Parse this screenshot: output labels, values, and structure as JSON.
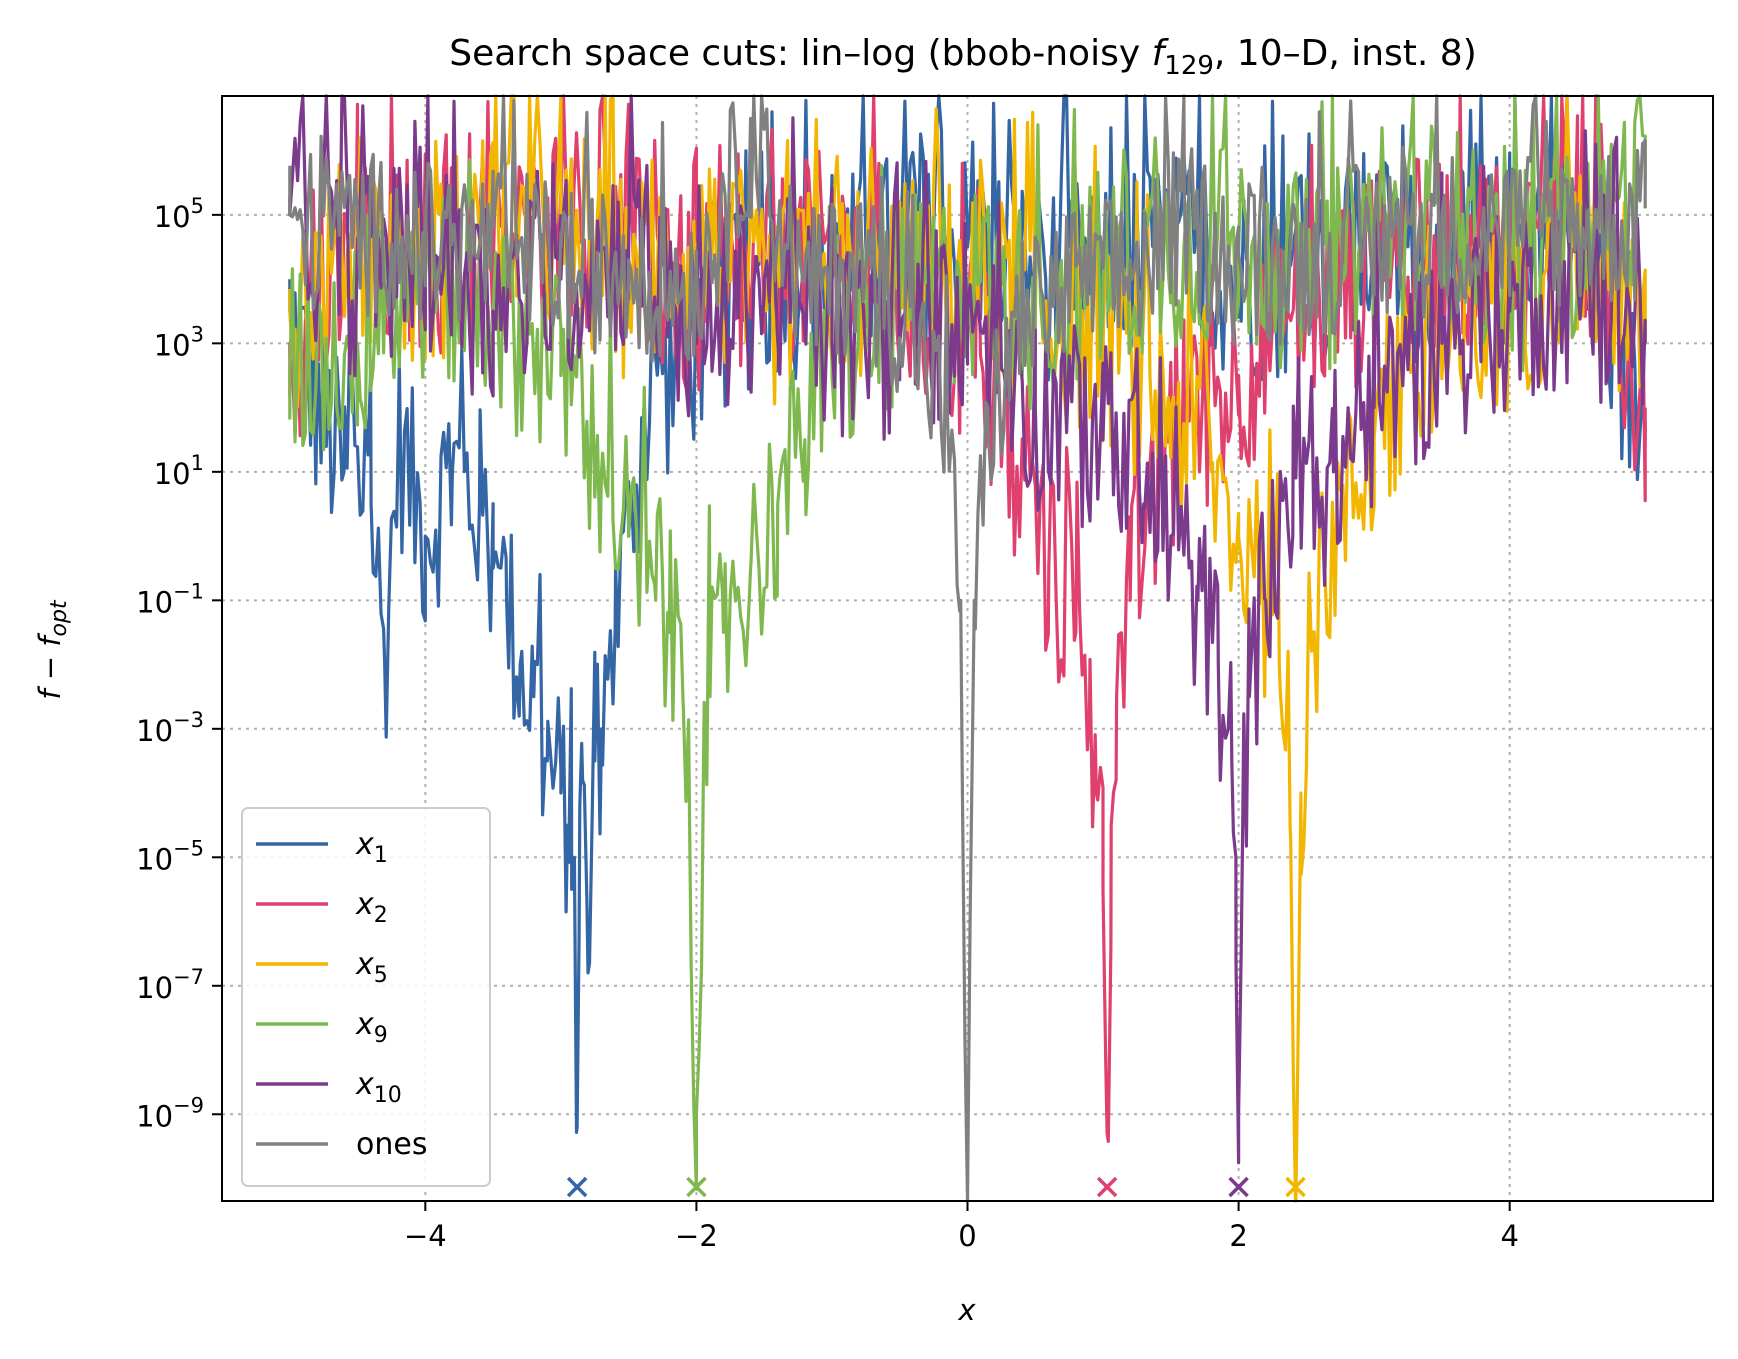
{
  "chart_data": {
    "type": "line",
    "title": {
      "prefix": "Search space cuts: lin–log (bbob-noisy ",
      "f": "f",
      "sub": "129",
      "suffix": ", 10–D, inst. 8)"
    },
    "xlabel": "x",
    "ylabel": {
      "base": "f − f",
      "sub": "opt"
    },
    "xlim": [
      -5.5,
      5.5
    ],
    "ylog_lim": [
      -10.35,
      1.0
    ],
    "yscale": "log",
    "ylog_range": [
      -10.35,
      6.85
    ],
    "grid": true,
    "legend_position": "lower-left",
    "x_ticks": [
      {
        "value": -4,
        "label": "−4"
      },
      {
        "value": -2,
        "label": "−2"
      },
      {
        "value": 0,
        "label": "0"
      },
      {
        "value": 2,
        "label": "2"
      },
      {
        "value": 4,
        "label": "4"
      }
    ],
    "y_ticks": [
      {
        "exp": 5,
        "label": "5"
      },
      {
        "exp": 3,
        "label": "3"
      },
      {
        "exp": 1,
        "label": "1"
      },
      {
        "exp": -1,
        "label": "−1"
      },
      {
        "exp": -3,
        "label": "−3"
      },
      {
        "exp": -5,
        "label": "−5"
      },
      {
        "exp": -7,
        "label": "−7"
      },
      {
        "exp": -9,
        "label": "−9"
      }
    ],
    "y_tick_base": "10",
    "series": [
      {
        "name": "x",
        "sub": "1",
        "color": "#3465a4",
        "optimum_x": -2.88,
        "x": [
          -5.0,
          -4.8,
          -4.6,
          -4.4,
          -4.3,
          -4.2,
          -4.0,
          -3.8,
          -3.6,
          -3.5,
          -3.4,
          -3.3,
          -3.2,
          -3.1,
          -3.0,
          -2.95,
          -2.92,
          -2.9,
          -2.88,
          -2.86,
          -2.84,
          -2.8,
          -2.75,
          -2.7,
          -2.6,
          -2.5,
          -2.4,
          -2.2,
          -2.0,
          -1.8,
          -1.5,
          -1.0,
          -0.5,
          0.0,
          0.5,
          1.0,
          1.5,
          2.0,
          2.5,
          3.0,
          3.5,
          4.0,
          4.5,
          5.0
        ],
        "log_y": [
          3.5,
          2.0,
          1.0,
          0.5,
          -2.0,
          1.5,
          0.0,
          1.0,
          0.5,
          -0.5,
          -1.0,
          -2.0,
          -2.5,
          -3.5,
          -4.0,
          -4.5,
          -5.5,
          -5.0,
          -9.2,
          -4.2,
          -3.8,
          -6.8,
          -3.5,
          -3.0,
          -1.5,
          0.0,
          1.5,
          2.5,
          3.0,
          3.5,
          4.0,
          4.0,
          4.5,
          4.5,
          4.0,
          4.0,
          4.5,
          4.0,
          4.0,
          4.5,
          4.0,
          4.5,
          5.0,
          1.5
        ]
      },
      {
        "name": "x",
        "sub": "2",
        "color": "#e0406e",
        "optimum_x": 1.03,
        "x": [
          -5.0,
          -4.5,
          -4.0,
          -3.5,
          -3.0,
          -2.5,
          -2.0,
          -1.5,
          -1.0,
          -0.5,
          0.0,
          0.3,
          0.6,
          0.8,
          0.9,
          0.95,
          1.0,
          1.03,
          1.06,
          1.1,
          1.2,
          1.4,
          1.6,
          2.0,
          2.5,
          3.0,
          3.5,
          4.0,
          4.5,
          5.0
        ],
        "log_y": [
          3.0,
          4.0,
          4.5,
          4.0,
          5.0,
          4.5,
          3.5,
          4.0,
          4.5,
          3.5,
          3.0,
          1.0,
          -0.5,
          -1.5,
          -2.8,
          -4.0,
          -5.5,
          -9.3,
          -4.5,
          -2.5,
          -1.0,
          0.5,
          1.5,
          2.5,
          3.5,
          4.0,
          4.5,
          4.5,
          5.0,
          2.0
        ]
      },
      {
        "name": "x",
        "sub": "5",
        "color": "#f2b600",
        "optimum_x": 2.42,
        "x": [
          -5.0,
          -4.5,
          -4.0,
          -3.5,
          -3.0,
          -2.5,
          -2.0,
          -1.5,
          -1.0,
          -0.5,
          0.0,
          0.5,
          1.0,
          1.5,
          1.8,
          2.0,
          2.2,
          2.3,
          2.38,
          2.42,
          2.46,
          2.55,
          2.7,
          3.0,
          3.5,
          4.0,
          4.5,
          5.0
        ],
        "log_y": [
          3.5,
          4.5,
          4.0,
          5.0,
          4.5,
          4.0,
          4.5,
          3.5,
          4.0,
          4.0,
          4.0,
          3.5,
          3.0,
          2.0,
          1.0,
          0.0,
          -1.0,
          -2.0,
          -4.5,
          -10.35,
          -4.0,
          -1.5,
          0.0,
          1.5,
          2.5,
          3.5,
          4.5,
          3.0
        ]
      },
      {
        "name": "x",
        "sub": "9",
        "color": "#7fb84e",
        "optimum_x": -2.0,
        "x": [
          -5.0,
          -4.5,
          -4.0,
          -3.5,
          -3.0,
          -2.7,
          -2.5,
          -2.3,
          -2.2,
          -2.1,
          -2.05,
          -2.0,
          -1.95,
          -1.9,
          -1.8,
          -1.6,
          -1.4,
          -1.2,
          -1.0,
          -0.5,
          0.0,
          0.5,
          1.0,
          1.5,
          2.0,
          2.5,
          3.0,
          3.5,
          4.0,
          4.5,
          5.0
        ],
        "log_y": [
          2.5,
          3.0,
          4.0,
          3.5,
          2.5,
          1.0,
          0.0,
          -1.0,
          -1.5,
          -2.5,
          -4.5,
          -9.0,
          -4.0,
          -2.5,
          -1.5,
          -0.5,
          0.5,
          1.5,
          2.5,
          3.5,
          4.0,
          3.5,
          4.0,
          4.5,
          4.5,
          4.0,
          4.5,
          5.0,
          4.0,
          4.5,
          5.5
        ]
      },
      {
        "name": "x",
        "sub": "10",
        "color": "#7b3a8c",
        "optimum_x": 2.0,
        "x": [
          -5.0,
          -4.5,
          -4.0,
          -3.5,
          -3.0,
          -2.5,
          -2.0,
          -1.5,
          -1.0,
          -0.5,
          0.0,
          0.5,
          1.0,
          1.3,
          1.5,
          1.7,
          1.85,
          1.95,
          1.98,
          2.0,
          2.03,
          2.08,
          2.2,
          2.4,
          2.7,
          3.0,
          3.5,
          4.0,
          4.5,
          5.0
        ],
        "log_y": [
          5.0,
          4.0,
          4.5,
          3.5,
          4.0,
          4.5,
          3.0,
          4.0,
          3.0,
          3.0,
          3.5,
          2.0,
          1.5,
          0.5,
          0.0,
          -1.0,
          -2.0,
          -3.5,
          -5.0,
          -9.0,
          -4.5,
          -2.5,
          -1.0,
          0.0,
          1.0,
          2.0,
          3.0,
          3.5,
          4.0,
          3.0
        ]
      },
      {
        "name": "ones",
        "sub": "",
        "color": "#808080",
        "optimum_x": null,
        "x": [
          -5.0,
          -4.5,
          -4.0,
          -3.5,
          -3.0,
          -2.5,
          -2.0,
          -1.6,
          -1.2,
          -0.8,
          -0.4,
          -0.15,
          -0.05,
          0.0,
          0.05,
          0.15,
          0.4,
          0.8,
          1.2,
          1.6,
          2.0,
          2.5,
          3.0,
          3.5,
          4.0,
          4.5,
          5.0
        ],
        "log_y": [
          5.0,
          5.0,
          4.8,
          4.8,
          4.5,
          4.3,
          4.2,
          6.5,
          4.0,
          4.5,
          3.5,
          2.0,
          -1.0,
          -10.35,
          -1.0,
          2.0,
          3.5,
          4.2,
          4.3,
          5.2,
          4.4,
          4.6,
          4.8,
          5.0,
          5.0,
          5.1,
          5.1
        ]
      }
    ]
  }
}
